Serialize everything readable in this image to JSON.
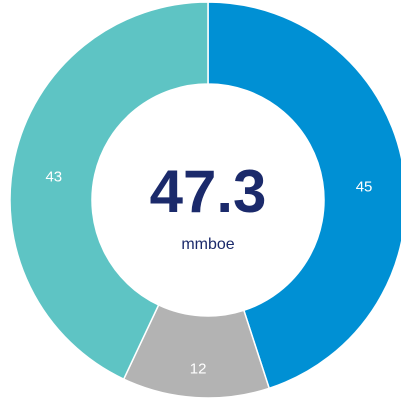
{
  "chart_data": {
    "type": "donut",
    "values": [
      45,
      12,
      43
    ],
    "colors": [
      "#0090d4",
      "#b3b3b3",
      "#5ec4c4"
    ],
    "center_value": 47.3,
    "center_label": "mmboe"
  }
}
